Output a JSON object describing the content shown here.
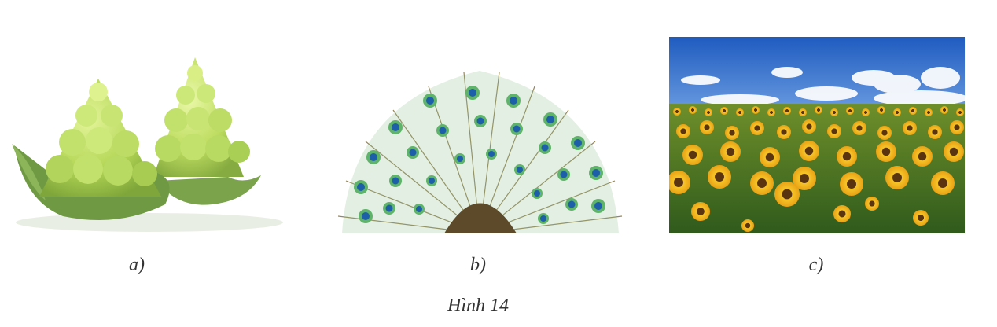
{
  "figures": [
    {
      "label": "a)",
      "subject": "romanesco-broccoli"
    },
    {
      "label": "b)",
      "subject": "peacock-feathers"
    },
    {
      "label": "c)",
      "subject": "sunflower-field"
    }
  ],
  "figure_title": "Hình 14",
  "colors": {
    "romanesco": "#b6d85a",
    "peacock_eye": "#1d5fa8",
    "sky": "#2f6cc7",
    "sunflower": "#f2b21a"
  }
}
